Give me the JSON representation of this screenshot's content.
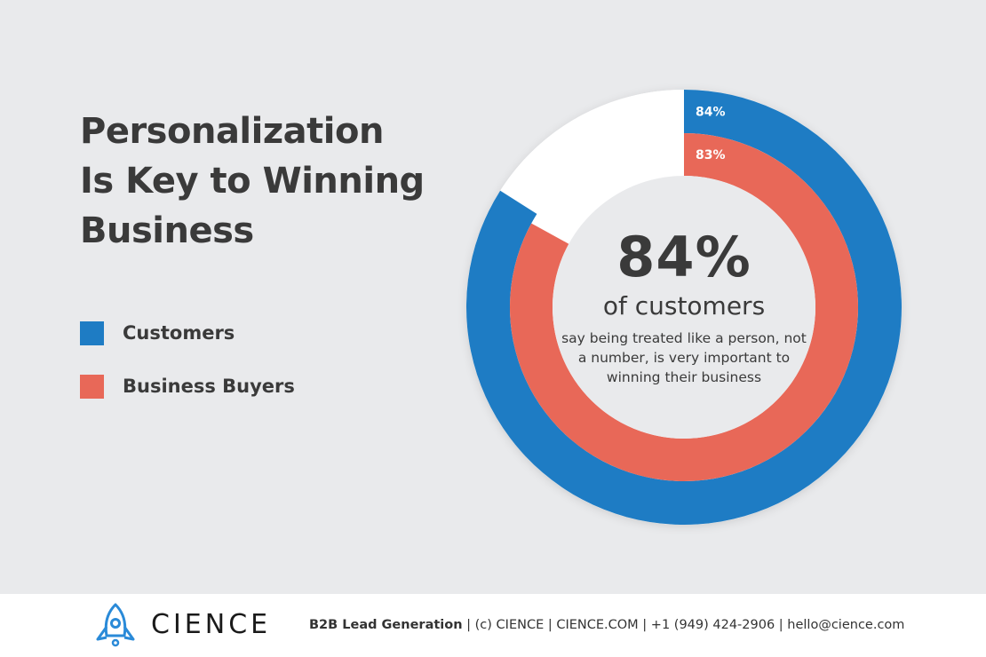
{
  "title_lines": [
    "Personalization",
    "Is Key to Winning",
    "Business"
  ],
  "legend": [
    {
      "label": "Customers",
      "color": "#1e7cc4"
    },
    {
      "label": "Business Buyers",
      "color": "#e86858"
    }
  ],
  "center": {
    "big": "84%",
    "sub": "of customers",
    "desc": "say being treated like a person, not a number, is very important to winning their business"
  },
  "chart_data": {
    "type": "pie",
    "variant": "nested-donut",
    "series": [
      {
        "name": "Customers",
        "value": 84,
        "label": "84%",
        "color": "#1e7cc4"
      },
      {
        "name": "Business Buyers",
        "value": 83,
        "label": "83%",
        "color": "#e86858"
      }
    ],
    "remainder_color": "#ffffff"
  },
  "footer": {
    "brand": "CIENCE",
    "bold_text": "B2B Lead Generation",
    "contact_rest": " | (c) CIENCE | CIENCE.COM | +1 (949) 424-2906 | hello@cience.com",
    "logo_icon": "rocket-icon"
  }
}
